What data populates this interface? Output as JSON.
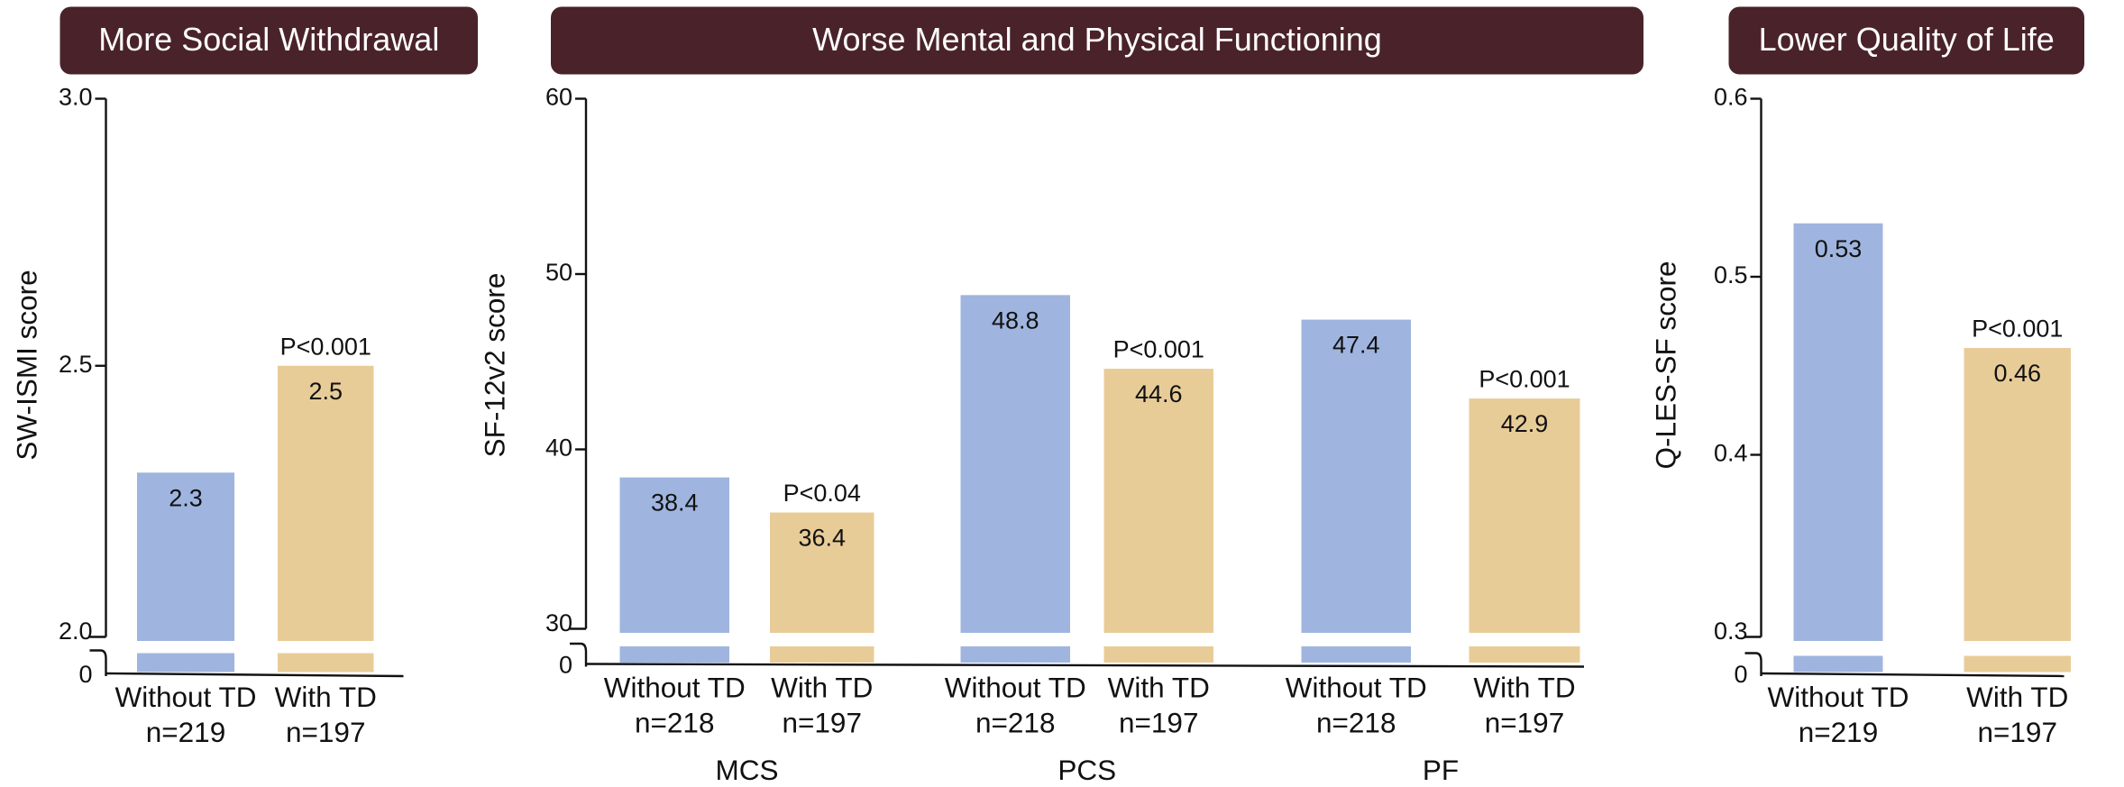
{
  "chart_data": [
    {
      "type": "bar",
      "title": "More Social Withdrawal",
      "ylabel": "SW-ISMI score",
      "ylim": [
        2,
        3
      ],
      "yticks": [
        {
          "value": 2,
          "label": "2.0"
        },
        2.5,
        {
          "value": 3,
          "label": "3.0"
        }
      ],
      "zero_tick": 0,
      "categories": [
        null
      ],
      "p_values": [
        "P<0.001"
      ],
      "series": [
        {
          "name": "Without TD",
          "n_label": "n=219",
          "color": "#9fb5df",
          "values": [
            2.3
          ]
        },
        {
          "name": "With TD",
          "n_label": "n=197",
          "color": "#e8cc98",
          "values": [
            2.5
          ]
        }
      ]
    },
    {
      "type": "bar",
      "title": "Worse Mental and Physical Functioning",
      "ylabel": "SF-12v2 score",
      "ylim": [
        30,
        60
      ],
      "yticks": [
        30,
        40,
        50,
        60
      ],
      "zero_tick": 0,
      "categories": [
        "MCS",
        "PCS",
        "PF"
      ],
      "p_values": [
        "P<0.04",
        "P<0.001",
        "P<0.001"
      ],
      "series": [
        {
          "name": "Without TD",
          "n_label": "n=218",
          "color": "#9fb5df",
          "values": [
            38.4,
            48.8,
            47.4
          ]
        },
        {
          "name": "With TD",
          "n_label": "n=197",
          "color": "#e8cc98",
          "values": [
            36.4,
            44.6,
            42.9
          ]
        }
      ]
    },
    {
      "type": "bar",
      "title": "Lower Quality of Life",
      "ylabel": "Q-LES-SF score",
      "ylim": [
        0.3,
        0.6
      ],
      "yticks": [
        0.3,
        0.4,
        0.5,
        0.6
      ],
      "zero_tick": 0,
      "categories": [
        null
      ],
      "p_values": [
        "P<0.001"
      ],
      "series": [
        {
          "name": "Without TD",
          "n_label": "n=219",
          "color": "#9fb5df",
          "values": [
            0.53
          ]
        },
        {
          "name": "With TD",
          "n_label": "n=197",
          "color": "#e8cc98",
          "values": [
            0.46
          ]
        }
      ]
    }
  ]
}
